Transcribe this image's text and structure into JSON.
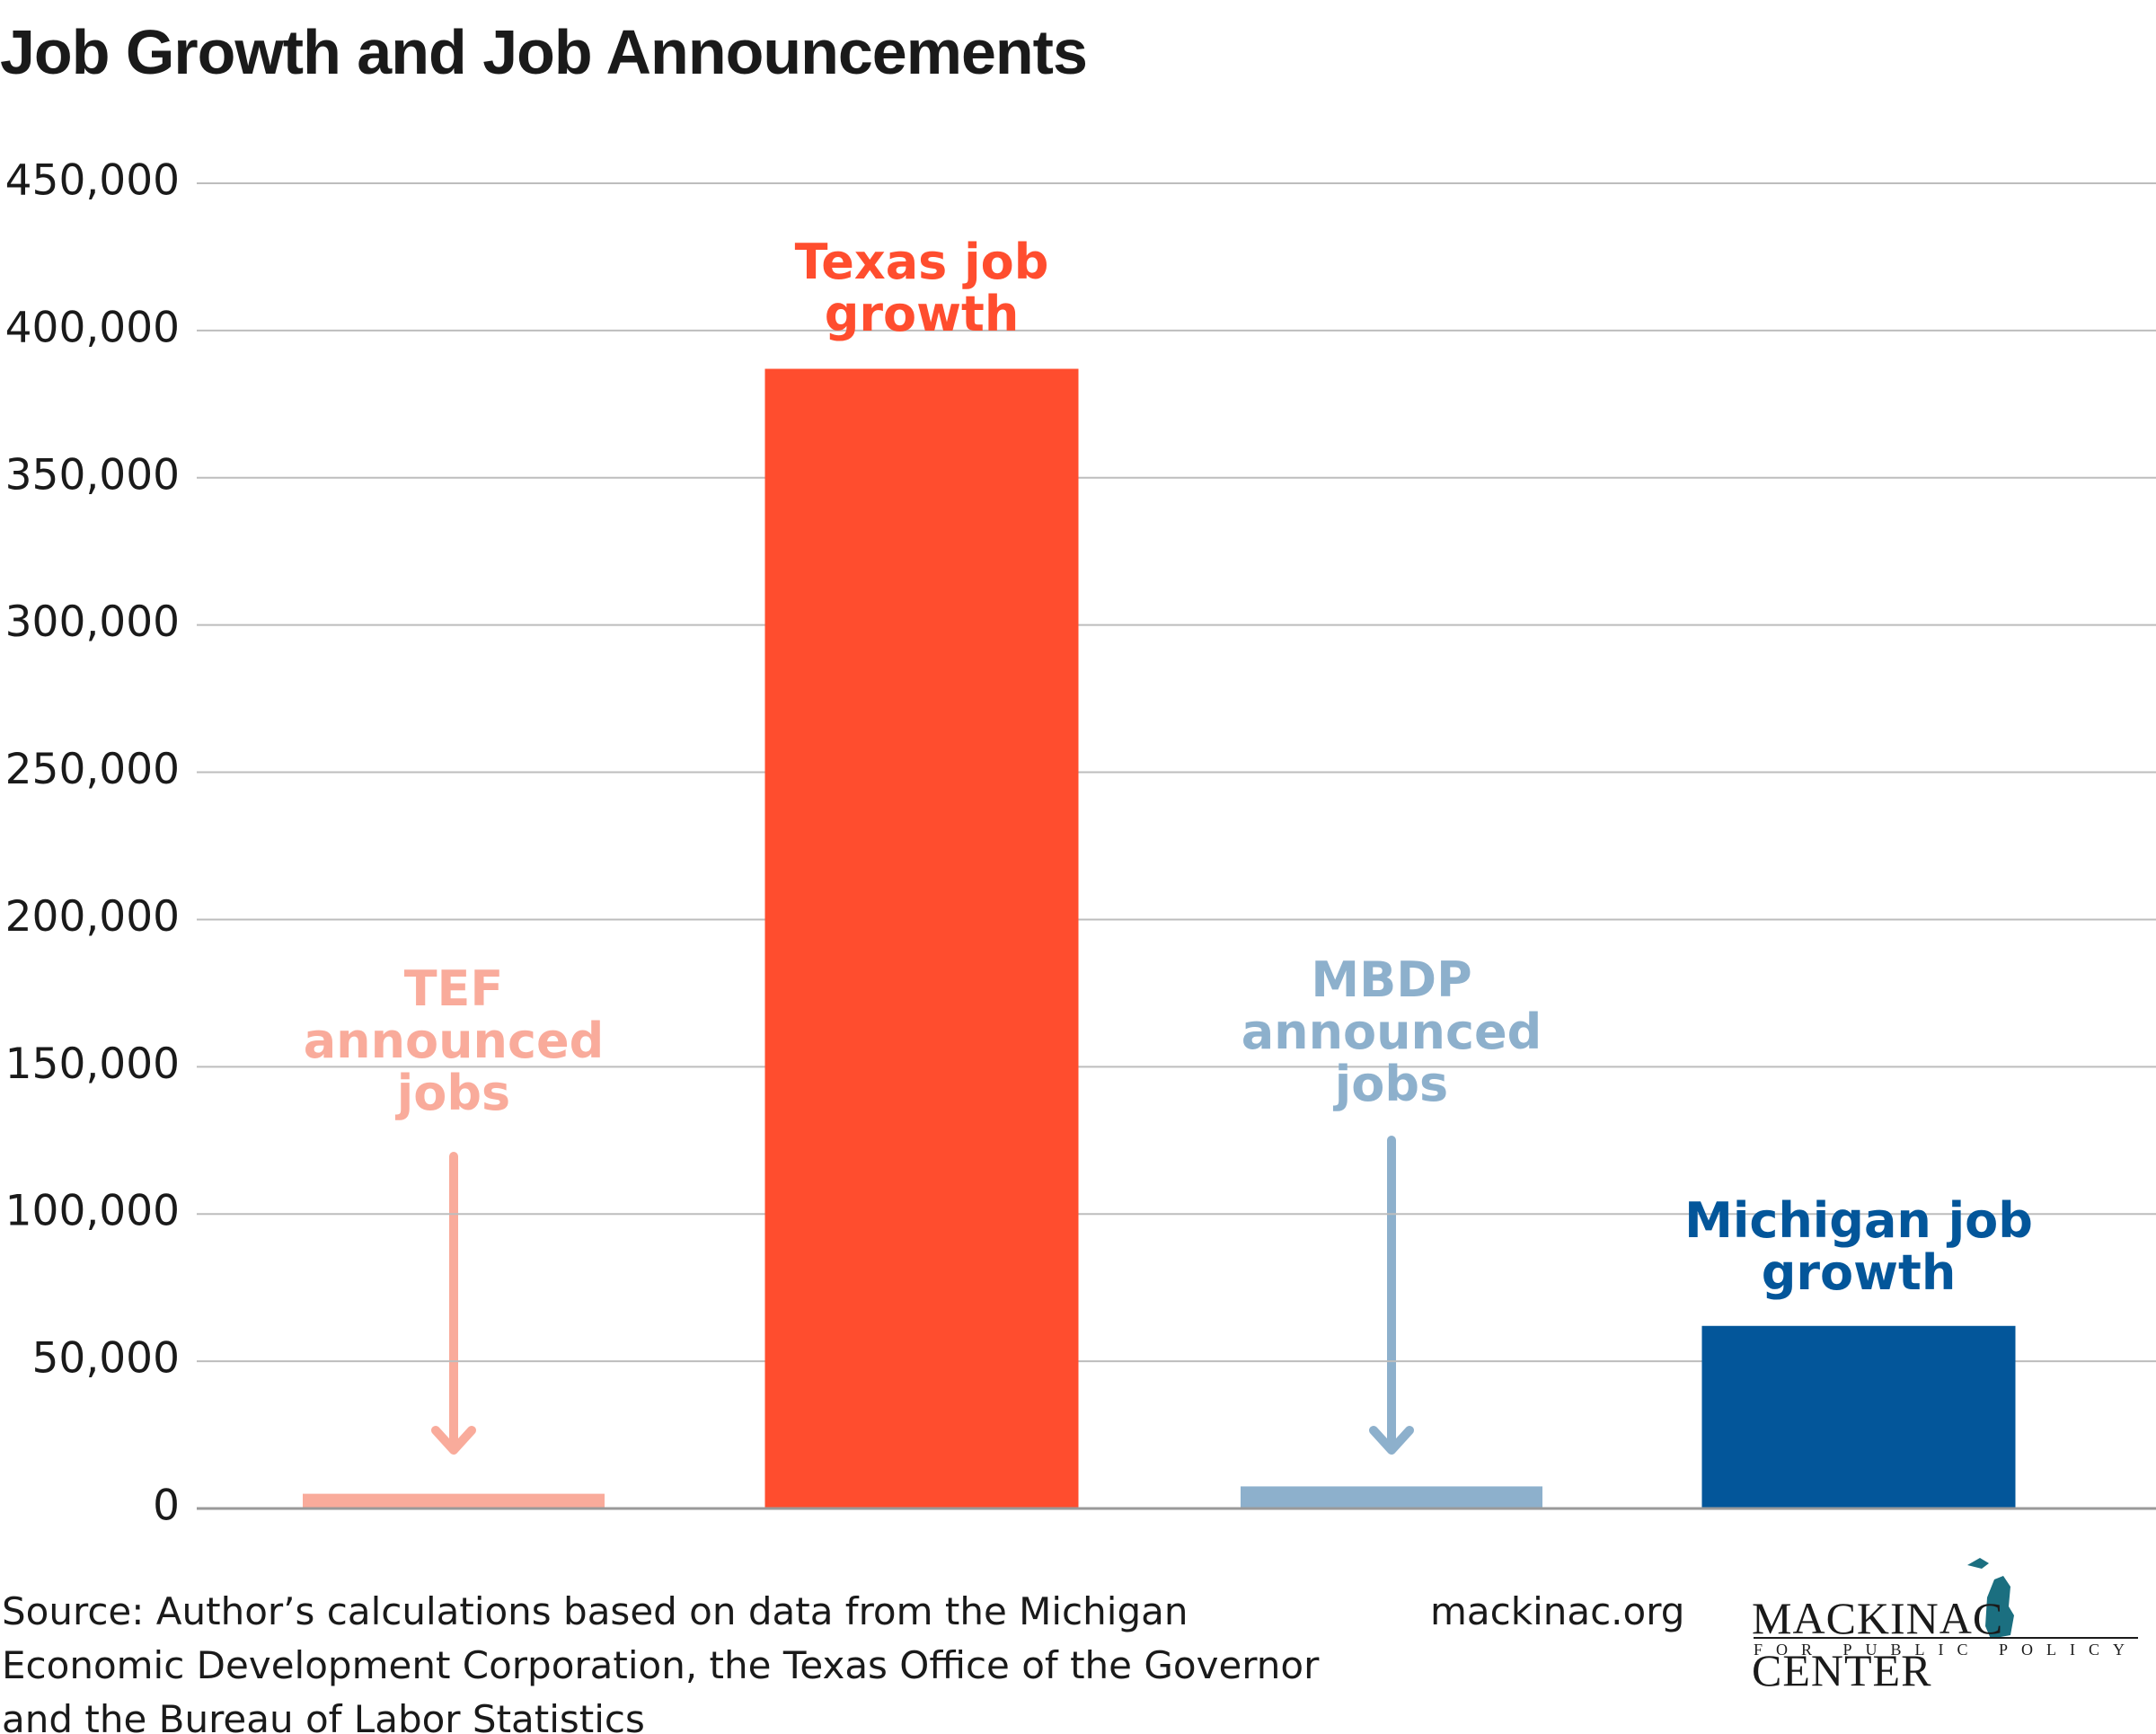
{
  "chart_data": {
    "type": "bar",
    "title": "Job Growth and Job Announcements",
    "categories": [
      "TEF\nannounced\njobs",
      "Texas job\ngrowth",
      "MBDP\nannounced\njobs",
      "Michigan job\ngrowth"
    ],
    "values": [
      5000,
      387000,
      7500,
      62000
    ],
    "colors": [
      "#f9ab9b",
      "#ff4d2e",
      "#8db0cc",
      "#03569a"
    ],
    "ylim": [
      0,
      450000
    ],
    "yticks": [
      0,
      {
        "value": 50000,
        "label": "50,000"
      },
      {
        "value": 100000,
        "label": "100,000"
      },
      {
        "value": 150000,
        "label": "150,000"
      },
      {
        "value": 200000,
        "label": "200,000"
      },
      {
        "value": 250000,
        "label": "250,000"
      },
      {
        "value": 300000,
        "label": "300,000"
      },
      {
        "value": 350000,
        "label": "350,000"
      },
      {
        "value": 400000,
        "label": "400,000"
      },
      {
        "value": 450000,
        "label": "450,000"
      }
    ],
    "grid": true,
    "source": "Source: Author’s calculations based on data from the Michigan\nEconomic Development Corporation, the Texas Office of the Governor\nand the Bureau of Labor Statistics",
    "website": "mackinac.org",
    "logo": {
      "name": "MACKINAC CENTER",
      "tagline": "FOR PUBLIC POLICY"
    }
  }
}
